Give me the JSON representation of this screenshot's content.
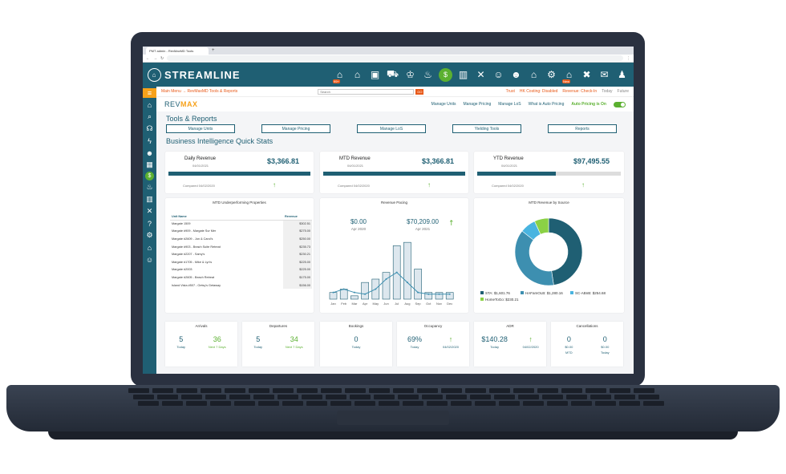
{
  "browser": {
    "tab_title": "PMT admin - RevMaxMD Tools",
    "tab_plus": "+"
  },
  "app": {
    "logo_text": "STREAMLINE",
    "header_badges": {
      "notifications": "99+",
      "new": "New"
    }
  },
  "topbar": {
    "breadcrumb": "Main Menu → RevMaxMD Tools & Reports",
    "search_placeholder": "Search",
    "go_label": "GO",
    "alerts": [
      "Trust",
      "HK Costing: Disabled",
      "Revenue: Check-In"
    ],
    "today": "Today",
    "future": "Future"
  },
  "subnav": {
    "brand_prefix": "REV",
    "brand_suffix": "MAX",
    "links": [
      "Manage Units",
      "Manage Pricing",
      "Manage LoS",
      "What is Auto Pricing"
    ],
    "auto_pricing": "Auto Pricing is On"
  },
  "tools": {
    "title": "Tools & Reports",
    "buttons": [
      "Manage Units",
      "Manage Pricing",
      "Manage LoS",
      "Yielding Tools",
      "Reports"
    ]
  },
  "bi_title": "Business Intelligence Quick Stats",
  "revenue_cards": [
    {
      "label": "Daily Revenue",
      "date": "04/01/2021",
      "value": "$3,366.81",
      "compare": "Compared 04/02/2020",
      "progress": 1.0
    },
    {
      "label": "MTD Revenue",
      "date": "04/01/2021",
      "value": "$3,366.81",
      "compare": "Compared 04/02/2020",
      "progress": 1.0
    },
    {
      "label": "YTD Revenue",
      "date": "04/01/2021",
      "value": "$97,495.55",
      "compare": "Compared 04/02/2020",
      "progress": 0.55
    }
  ],
  "underperforming": {
    "title": "MTD Underperforming Properties",
    "col_unit": "Unit Name",
    "col_revenue": "Revenue",
    "rows": [
      {
        "name": "Margate 1509",
        "revenue": "$302.51"
      },
      {
        "name": "Margate #909 - Margate Sur Mer",
        "revenue": "$275.00"
      },
      {
        "name": "Margate #2609 - Jon & Carol's",
        "revenue": "$250.00"
      },
      {
        "name": "Margate #903 - Beach Suite Retreat",
        "revenue": "$235.73"
      },
      {
        "name": "Margate #2207 - Samy's",
        "revenue": "$230.21"
      },
      {
        "name": "Margate #1705 - Mike & Lyn's",
        "revenue": "$225.00"
      },
      {
        "name": "Margate #2003",
        "revenue": "$225.00"
      },
      {
        "name": "Margate #2605 - Beach Retreat",
        "revenue": "$175.00"
      },
      {
        "name": "Island Vista #507 - Getsy's Getaway",
        "revenue": "$156.00"
      }
    ]
  },
  "pacing": {
    "title": "Revenue Pacing",
    "left_value": "$0.00",
    "left_label": "Apr 2020",
    "right_value": "$70,209.00",
    "right_label": "Apr 2021",
    "months": [
      "Jan",
      "Feb",
      "Mar",
      "Apr",
      "May",
      "Jun",
      "Jul",
      "Aug",
      "Sep",
      "Oct",
      "Nov",
      "Dec"
    ],
    "bars": [
      2,
      3,
      1,
      5,
      6,
      8,
      16,
      17,
      9,
      2,
      2,
      2
    ],
    "line": [
      2,
      3,
      2,
      1.5,
      3,
      6,
      8,
      5,
      2,
      1.5,
      1.5,
      1.5
    ]
  },
  "source": {
    "title": "MTD Revenue by Source",
    "slices": [
      {
        "name": "STA",
        "value": 1601.76,
        "color": "#1f5f73"
      },
      {
        "name": "HAFamOLB",
        "value": 1280.16,
        "color": "#3d8fb0"
      },
      {
        "name": "SC-ABnB",
        "value": 254.68,
        "color": "#49b4e0"
      },
      {
        "name": "HomeToGo",
        "value": 230.21,
        "color": "#8bd145"
      }
    ],
    "legend": [
      "STA: $1,601.76",
      "HAFamOLB: $1,280.16",
      "SC-ABnB: $254.68",
      "HomeToGo: $230.21"
    ]
  },
  "stats": [
    {
      "title": "Arrivals",
      "a": "5",
      "a_sub": "Today",
      "b": "36",
      "b_sub": "Next 7 Days"
    },
    {
      "title": "Departures",
      "a": "5",
      "a_sub": "Today",
      "b": "34",
      "b_sub": "Next 7 Days"
    },
    {
      "title": "Bookings",
      "a": "0",
      "a_sub": "Today"
    },
    {
      "title": "Occupancy",
      "a": "69%",
      "a_sub": "Today",
      "b_sub": "04/02/2020"
    },
    {
      "title": "ADR",
      "a": "$140.28",
      "a_sub": "Today",
      "b_sub": "04/02/2020"
    },
    {
      "title": "Cancellations",
      "a": "0",
      "a_sub": "$0.00",
      "a_sub2": "MTD",
      "b": "0",
      "b_sub": "$0.00",
      "b_sub2": "Today"
    }
  ]
}
